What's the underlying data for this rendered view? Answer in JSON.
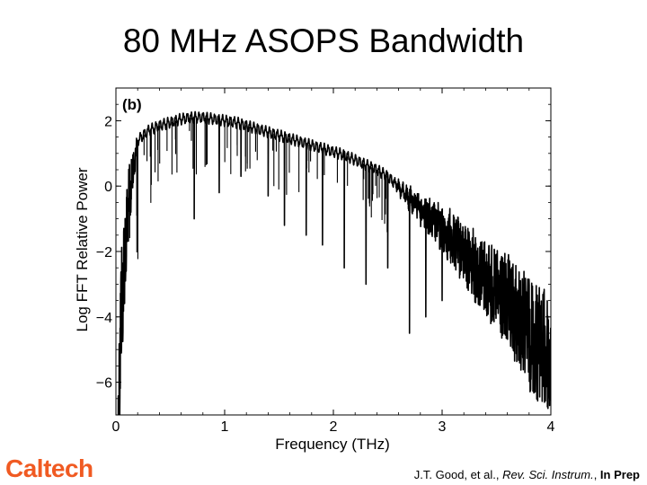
{
  "slide": {
    "title": "80 MHz ASOPS Bandwidth",
    "logo_text": "Caltech",
    "logo_color": "#f05a22",
    "citation": {
      "authors": "J.T. Good, et al., ",
      "journal": "Rev. Sci. Instrum.",
      "separator": ", ",
      "status": "In Prep"
    }
  },
  "chart_data": {
    "type": "line",
    "panel_label": "(b)",
    "title": "",
    "xlabel": "Frequency (THz)",
    "ylabel": "Log FFT Relative Power",
    "xlim": [
      0,
      4
    ],
    "ylim": [
      -7,
      3
    ],
    "xticks": [
      0,
      1,
      2,
      3,
      4
    ],
    "yticks": [
      2,
      0,
      -2,
      -4,
      -6
    ],
    "ytick_labels": [
      "2",
      "0",
      "−2",
      "−4",
      "−6"
    ],
    "grid": false,
    "legend": "none",
    "line_color": "#000000",
    "series": [
      {
        "x": [
          0.02,
          0.05,
          0.1,
          0.15,
          0.2,
          0.3,
          0.4,
          0.5,
          0.6,
          0.7,
          0.8,
          0.9,
          1.0,
          1.1,
          1.2,
          1.3,
          1.4,
          1.5,
          1.6,
          1.7,
          1.8,
          1.9,
          2.0,
          2.1,
          2.2,
          2.3,
          2.4,
          2.5,
          2.6,
          2.7,
          2.8,
          2.9,
          3.0,
          3.1,
          3.2,
          3.3,
          3.4,
          3.5,
          3.6,
          3.7,
          3.8,
          3.9,
          4.0
        ],
        "y": [
          -5.0,
          -1.5,
          0.2,
          1.0,
          1.4,
          1.7,
          1.85,
          1.95,
          2.05,
          2.1,
          2.1,
          2.05,
          2.0,
          1.95,
          1.85,
          1.75,
          1.65,
          1.55,
          1.45,
          1.35,
          1.25,
          1.15,
          1.05,
          0.95,
          0.8,
          0.65,
          0.5,
          0.3,
          0.1,
          -0.1,
          -0.3,
          -0.5,
          -0.7,
          -0.9,
          -1.15,
          -1.4,
          -1.65,
          -1.9,
          -2.2,
          -2.5,
          -2.8,
          -3.1,
          -3.4
        ]
      }
    ],
    "dips": [
      {
        "x": 0.72,
        "y": -1.0
      },
      {
        "x": 0.95,
        "y": -0.2
      },
      {
        "x": 1.15,
        "y": 0.3
      },
      {
        "x": 1.4,
        "y": -0.3
      },
      {
        "x": 1.55,
        "y": -1.2
      },
      {
        "x": 1.75,
        "y": -1.5
      },
      {
        "x": 1.9,
        "y": -1.8
      },
      {
        "x": 2.1,
        "y": -2.5
      },
      {
        "x": 2.3,
        "y": -3.0
      },
      {
        "x": 2.5,
        "y": -2.5
      },
      {
        "x": 2.7,
        "y": -4.5
      },
      {
        "x": 2.85,
        "y": -4.0
      },
      {
        "x": 3.0,
        "y": -3.5
      }
    ]
  }
}
